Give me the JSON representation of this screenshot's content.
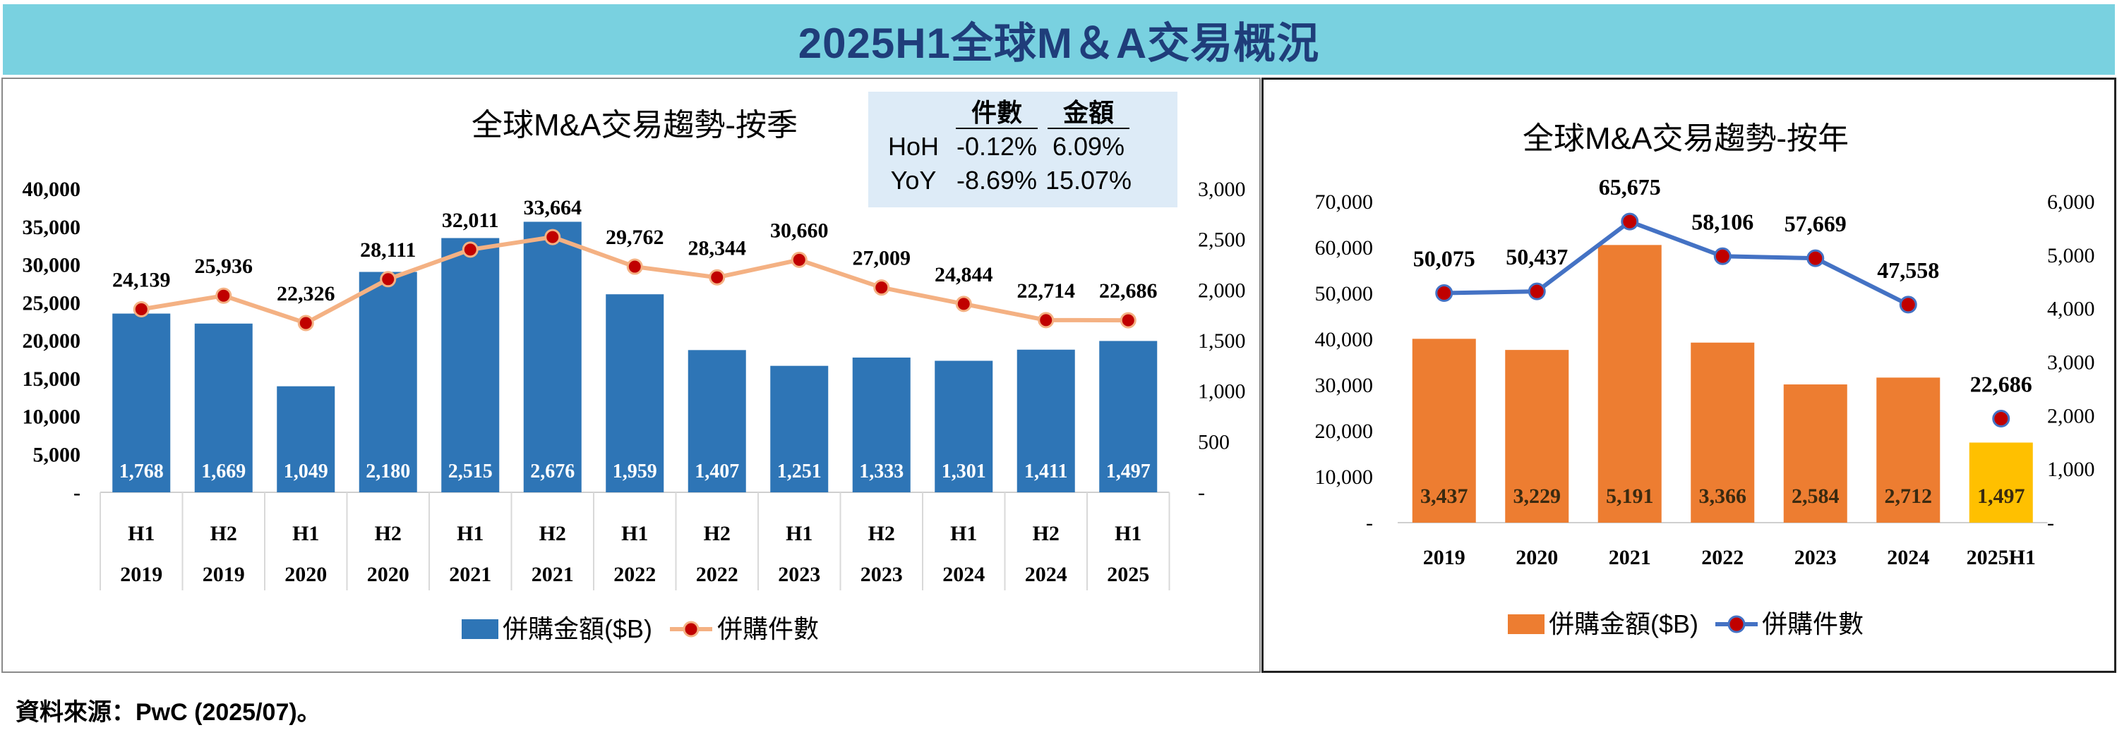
{
  "page_title": "2025H1全球M＆A交易概況",
  "source_note": "資料來源：PwC (2025/07)。",
  "colors": {
    "banner_bg": "#79D1E0",
    "banner_text": "#1F3D7A",
    "quarter_bar": "#2E75B6",
    "quarter_line": "#F4B183",
    "marker_fill": "#C00000",
    "year_bar": "#ED7D31",
    "year_bar_highlight": "#FFC000",
    "year_line": "#4472C4",
    "stats_bg": "#DDEBF7"
  },
  "chart_data": [
    {
      "type": "bar+line",
      "title": "全球M&A交易趨勢-按季",
      "x_periods": [
        "H1",
        "H2",
        "H1",
        "H2",
        "H1",
        "H2",
        "H1",
        "H2",
        "H1",
        "H2",
        "H1",
        "H2",
        "H1"
      ],
      "x_years": [
        "2019",
        "2019",
        "2020",
        "2020",
        "2021",
        "2021",
        "2022",
        "2022",
        "2023",
        "2023",
        "2024",
        "2024",
        "2025"
      ],
      "series": [
        {
          "name": "併購金額($B)",
          "kind": "bar",
          "axis": "right",
          "values": [
            1768,
            1669,
            1049,
            2180,
            2515,
            2676,
            1959,
            1407,
            1251,
            1333,
            1301,
            1411,
            1497
          ],
          "labels": [
            "1,768",
            "1,669",
            "1,049",
            "2,180",
            "2,515",
            "2,676",
            "1,959",
            "1,407",
            "1,251",
            "1,333",
            "1,301",
            "1,411",
            "1,497"
          ]
        },
        {
          "name": "併購件數",
          "kind": "line",
          "axis": "left",
          "values": [
            24139,
            25936,
            22326,
            28111,
            32011,
            33664,
            29762,
            28344,
            30660,
            27009,
            24844,
            22714,
            22686
          ],
          "labels": [
            "24,139",
            "25,936",
            "22,326",
            "28,111",
            "32,011",
            "33,664",
            "29,762",
            "28,344",
            "30,660",
            "27,009",
            "24,844",
            "22,714",
            "22,686"
          ]
        }
      ],
      "left_axis": {
        "min": 0,
        "max": 40000,
        "ticks": [
          "-",
          "5,000",
          "10,000",
          "15,000",
          "20,000",
          "25,000",
          "30,000",
          "35,000",
          "40,000"
        ]
      },
      "right_axis": {
        "min": 0,
        "max": 3000,
        "ticks": [
          "-",
          "500",
          "1,000",
          "1,500",
          "2,000",
          "2,500",
          "3,000"
        ]
      },
      "legend": "bottom-center",
      "stats_table": {
        "header": [
          "",
          "件數",
          "金額"
        ],
        "rows": [
          [
            "HoH",
            "-0.12%",
            "6.09%"
          ],
          [
            "YoY",
            "-8.69%",
            "15.07%"
          ]
        ]
      }
    },
    {
      "type": "bar+line",
      "title": "全球M&A交易趨勢-按年",
      "categories": [
        "2019",
        "2020",
        "2021",
        "2022",
        "2023",
        "2024",
        "2025H1"
      ],
      "series": [
        {
          "name": "併購金額($B)",
          "kind": "bar",
          "axis": "right",
          "values": [
            3437,
            3229,
            5191,
            3366,
            2584,
            2712,
            1497
          ],
          "labels": [
            "3,437",
            "3,229",
            "5,191",
            "3,366",
            "2,584",
            "2,712",
            "1,497"
          ]
        },
        {
          "name": "併購件數",
          "kind": "line",
          "axis": "left",
          "values": [
            50075,
            50437,
            65675,
            58106,
            57669,
            47558,
            22686
          ],
          "labels": [
            "50,075",
            "50,437",
            "65,675",
            "58,106",
            "57,669",
            "47,558",
            "22,686"
          ]
        }
      ],
      "left_axis": {
        "min": 0,
        "max": 70000,
        "ticks": [
          "-",
          "10,000",
          "20,000",
          "30,000",
          "40,000",
          "50,000",
          "60,000",
          "70,000"
        ]
      },
      "right_axis": {
        "min": 0,
        "max": 6000,
        "ticks": [
          "-",
          "1,000",
          "2,000",
          "3,000",
          "4,000",
          "5,000",
          "6,000"
        ]
      },
      "legend": "bottom-center"
    }
  ]
}
